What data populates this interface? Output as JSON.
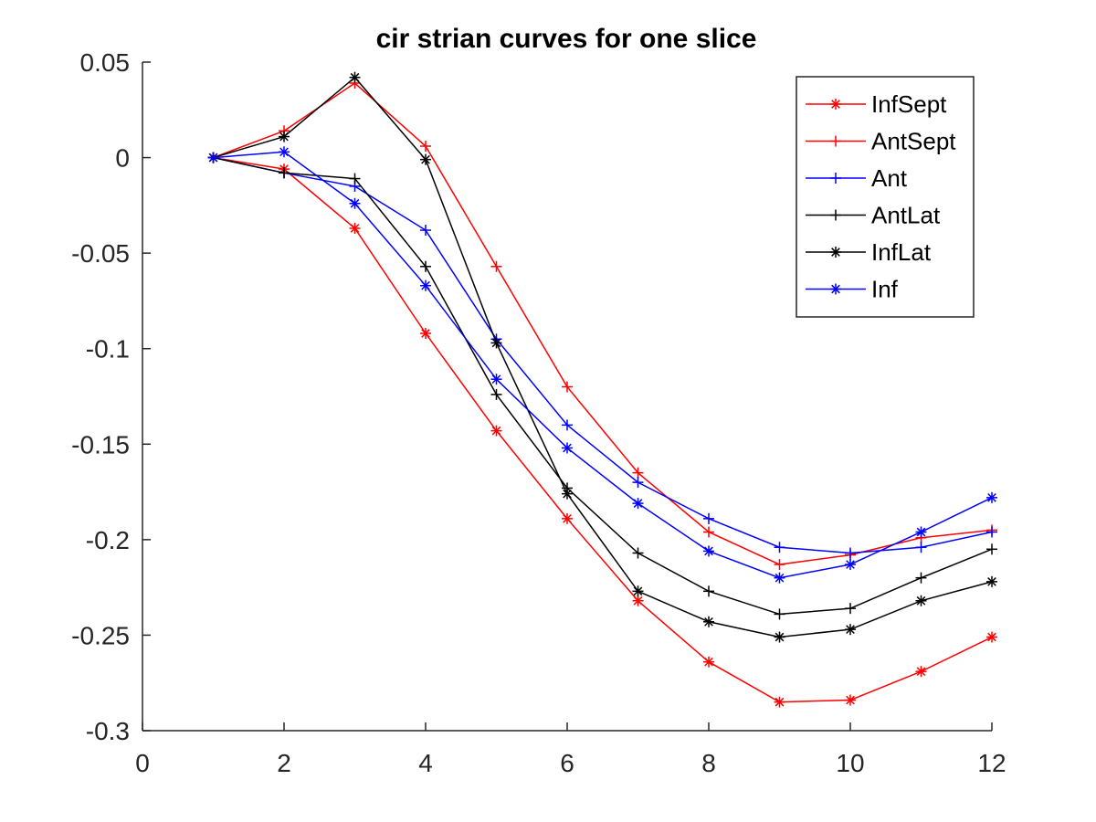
{
  "chart_data": {
    "type": "line",
    "title": "cir strian curves for one slice",
    "xlabel": "",
    "ylabel": "",
    "xlim": [
      0,
      12
    ],
    "ylim": [
      -0.3,
      0.05
    ],
    "xticks": [
      0,
      2,
      4,
      6,
      8,
      10,
      12
    ],
    "xtick_labels": [
      "0",
      "2",
      "4",
      "6",
      "8",
      "10",
      "12"
    ],
    "yticks": [
      0.05,
      0,
      -0.05,
      -0.1,
      -0.15,
      -0.2,
      -0.25,
      -0.3
    ],
    "ytick_labels": [
      "0.05",
      "0",
      "-0.05",
      "-0.1",
      "-0.15",
      "-0.2",
      "-0.25",
      "-0.3"
    ],
    "grid": false,
    "legend_position": "top-right",
    "x": [
      1,
      2,
      3,
      4,
      5,
      6,
      7,
      8,
      9,
      10,
      11,
      12
    ],
    "series": [
      {
        "name": "InfSept",
        "color": "#ff0000",
        "marker": "asterisk",
        "values": [
          0,
          -0.006,
          -0.037,
          -0.092,
          -0.143,
          -0.189,
          -0.232,
          -0.264,
          -0.285,
          -0.284,
          -0.269,
          -0.251
        ]
      },
      {
        "name": "AntSept",
        "color": "#ff0000",
        "marker": "plus",
        "values": [
          0,
          0.014,
          0.039,
          0.006,
          -0.057,
          -0.12,
          -0.165,
          -0.196,
          -0.213,
          -0.208,
          -0.199,
          -0.195
        ]
      },
      {
        "name": "Ant",
        "color": "#0000ff",
        "marker": "plus",
        "values": [
          0,
          -0.008,
          -0.015,
          -0.038,
          -0.095,
          -0.14,
          -0.17,
          -0.189,
          -0.204,
          -0.207,
          -0.204,
          -0.196
        ]
      },
      {
        "name": "AntLat",
        "color": "#000000",
        "marker": "plus",
        "values": [
          0,
          -0.008,
          -0.011,
          -0.057,
          -0.124,
          -0.173,
          -0.207,
          -0.227,
          -0.239,
          -0.236,
          -0.22,
          -0.205
        ]
      },
      {
        "name": "InfLat",
        "color": "#000000",
        "marker": "asterisk",
        "values": [
          0,
          0.011,
          0.042,
          -0.001,
          -0.097,
          -0.176,
          -0.227,
          -0.243,
          -0.251,
          -0.247,
          -0.232,
          -0.222
        ]
      },
      {
        "name": "Inf",
        "color": "#0000ff",
        "marker": "asterisk",
        "values": [
          0,
          0.003,
          -0.024,
          -0.067,
          -0.116,
          -0.152,
          -0.181,
          -0.206,
          -0.22,
          -0.213,
          -0.196,
          -0.178
        ]
      }
    ]
  }
}
